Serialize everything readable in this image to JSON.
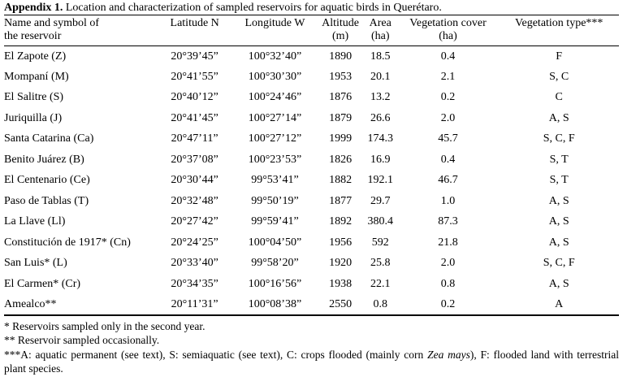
{
  "title": {
    "bold": "Appendix 1.",
    "rest": " Location and characterization of sampled reservoirs for aquatic birds in Querétaro."
  },
  "table": {
    "columns": [
      {
        "key": "name",
        "line1": "Name and symbol of",
        "line2": "the reservoir"
      },
      {
        "key": "latitude",
        "line1": "Latitude N",
        "line2": ""
      },
      {
        "key": "longitude",
        "line1": "Longitude W",
        "line2": ""
      },
      {
        "key": "altitude",
        "line1": "Altitude",
        "line2": "(m)"
      },
      {
        "key": "area",
        "line1": "Area",
        "line2": "(ha)"
      },
      {
        "key": "vegetation-cover",
        "line1": "Vegetation cover",
        "line2": "(ha)"
      },
      {
        "key": "vegetation-type",
        "line1": "Vegetation type***",
        "line2": ""
      }
    ],
    "rows": [
      [
        "El Zapote (Z)",
        "20°39’45”",
        "100°32’40”",
        "1890",
        "18.5",
        "0.4",
        "F"
      ],
      [
        "Mompaní (M)",
        "20°41’55”",
        "100°30’30”",
        "1953",
        "20.1",
        "2.1",
        "S, C"
      ],
      [
        "El Salitre (S)",
        "20°40’12”",
        "100°24’46”",
        "1876",
        "13.2",
        "0.2",
        "C"
      ],
      [
        "Juriquilla (J)",
        "20°41’45”",
        "100°27’14”",
        "1879",
        "26.6",
        "2.0",
        "A, S"
      ],
      [
        "Santa Catarina (Ca)",
        "20°47’11”",
        "100°27’12”",
        "1999",
        "174.3",
        "45.7",
        "S, C, F"
      ],
      [
        "Benito Juárez (B)",
        "20°37’08”",
        "100°23’53”",
        "1826",
        "16.9",
        "0.4",
        "S, T"
      ],
      [
        "El Centenario (Ce)",
        "20°30’44”",
        "99°53’41”",
        "1882",
        "192.1",
        "46.7",
        "S, T"
      ],
      [
        "Paso de Tablas (T)",
        "20°32’48”",
        "99°50’19”",
        "1877",
        "29.7",
        "1.0",
        "A, S"
      ],
      [
        "La Llave (Ll)",
        "20°27’42”",
        "99°59’41”",
        "1892",
        "380.4",
        "87.3",
        "A, S"
      ],
      [
        "Constitución de 1917* (Cn)",
        "20°24’25”",
        "100°04’50”",
        "1956",
        "592",
        "21.8",
        "A, S"
      ],
      [
        "San Luis* (L)",
        "20°33’40”",
        "99°58’20”",
        "1920",
        "25.8",
        "2.0",
        "S, C, F"
      ],
      [
        "El Carmen* (Cr)",
        "20°34’35”",
        "100°16’56”",
        "1938",
        "22.1",
        "0.8",
        "A, S"
      ],
      [
        "Amealco**",
        "20°11’31”",
        "100°08’38”",
        "2550",
        "0.8",
        "0.2",
        "A"
      ]
    ]
  },
  "footnotes": {
    "note1": "* Reservoirs sampled only in the second year.",
    "note2": "** Reservoir sampled occasionally.",
    "note3_prefix": "***A: aquatic permanent (see text), S: semiaquatic (see text), C: crops flooded (mainly corn ",
    "note3_italic": "Zea mays",
    "note3_suffix": "), F: flooded land with terrestrial plant species."
  }
}
